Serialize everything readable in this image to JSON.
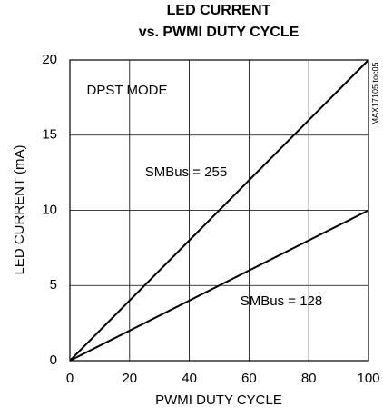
{
  "chart_data": {
    "type": "line",
    "title": [
      "LED CURRENT",
      "vs. PWMI DUTY CYCLE"
    ],
    "x_label": "PWMI DUTY CYCLE",
    "y_label": "LED CURRENT (mA)",
    "annotations": [
      "DPST MODE",
      "MAX17105 toc05"
    ],
    "x": [
      0,
      100
    ],
    "series": [
      {
        "name": "SMBus = 255",
        "color": "#000000",
        "values": [
          0,
          20
        ]
      },
      {
        "name": "SMBus = 128",
        "color": "#000000",
        "values": [
          0,
          10
        ]
      }
    ],
    "xlim": [
      0,
      100
    ],
    "xticks": [
      0,
      20,
      40,
      60,
      80,
      100
    ],
    "ylim": [
      0,
      20
    ],
    "yticks": [
      0,
      5,
      10,
      15,
      20
    ],
    "grid": true
  }
}
